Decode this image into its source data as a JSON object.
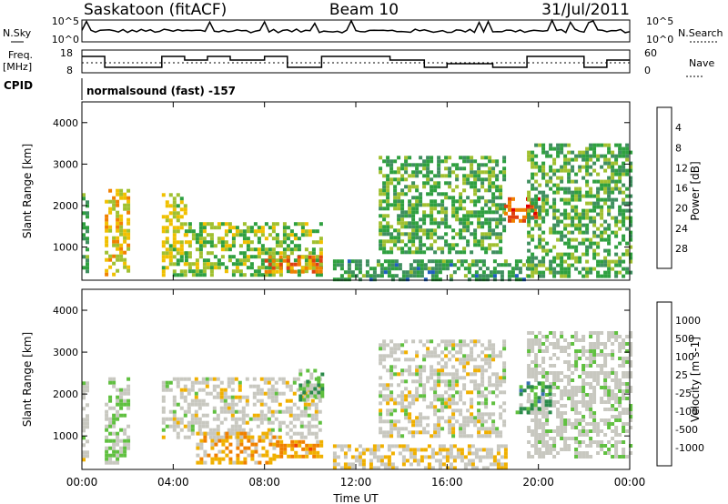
{
  "header": {
    "station": "Saskatoon (fitACF)",
    "beam": "Beam 10",
    "date": "31/Jul/2011"
  },
  "panels": {
    "nsky_label": "N.Sky",
    "nsearch_label": "N.Search",
    "freq_label_1": "Freq.",
    "freq_label_2": "[MHz]",
    "nave_label": "Nave",
    "cpid_label": "CPID",
    "cpid_value": "normalsound (fast) -157",
    "nsky_ticks": [
      "10^5",
      "10^0"
    ],
    "nsearch_ticks": [
      "10^5",
      "10^0"
    ],
    "freq_ticks": [
      "18",
      "8"
    ],
    "nave_ticks": [
      "60",
      "0"
    ]
  },
  "colors": {
    "power": [
      "#0000ff",
      "#1f5fbf",
      "#3f8f5f",
      "#2fa040",
      "#a0c030",
      "#f0c000",
      "#f08000",
      "#e04010",
      "#e00000"
    ],
    "velocity": [
      "#e00000",
      "#f04000",
      "#f08000",
      "#f0b000",
      "#c8c8c0",
      "#c8c8c0",
      "#60c040",
      "#2a8a4a",
      "#3a70b0",
      "#2030c0"
    ]
  },
  "chart_data": [
    {
      "type": "heatmap",
      "title": "",
      "xlabel": "Time UT",
      "ylabel": "Slant Range [km]",
      "x_ticks": [
        "00:00",
        "04:00",
        "08:00",
        "12:00",
        "16:00",
        "20:00",
        "00:00"
      ],
      "y_ticks": [
        "1000",
        "2000",
        "3000",
        "4000"
      ],
      "ylim": [
        200,
        4500
      ],
      "colorbar": {
        "label": "Power [dB]",
        "ticks": [
          "4",
          "8",
          "12",
          "16",
          "20",
          "24",
          "28"
        ],
        "range": [
          0,
          30
        ]
      },
      "regions": [
        {
          "t0": 0.0,
          "t1": 0.3,
          "r0": 400,
          "r1": 2300,
          "v": 10
        },
        {
          "t0": 1.0,
          "t1": 2.0,
          "r0": 300,
          "r1": 2400,
          "v": 18
        },
        {
          "t0": 3.5,
          "t1": 4.5,
          "r0": 300,
          "r1": 2300,
          "v": 16
        },
        {
          "t0": 4.5,
          "t1": 10.5,
          "r0": 300,
          "r1": 1600,
          "v": 14
        },
        {
          "t0": 8.0,
          "t1": 10.5,
          "r0": 400,
          "r1": 800,
          "v": 22
        },
        {
          "t0": 11.0,
          "t1": 19.5,
          "r0": 250,
          "r1": 700,
          "v": 10
        },
        {
          "t0": 13.0,
          "t1": 18.5,
          "r0": 900,
          "r1": 3200,
          "v": 12
        },
        {
          "t0": 18.5,
          "t1": 20.0,
          "r0": 1600,
          "r1": 2200,
          "v": 24
        },
        {
          "t0": 19.5,
          "t1": 24.0,
          "r0": 300,
          "r1": 3500,
          "v": 12
        }
      ]
    },
    {
      "type": "heatmap",
      "title": "",
      "xlabel": "Time UT",
      "ylabel": "Slant Range [km]",
      "x_ticks": [
        "00:00",
        "04:00",
        "08:00",
        "12:00",
        "16:00",
        "20:00",
        "00:00"
      ],
      "y_ticks": [
        "1000",
        "2000",
        "3000",
        "4000"
      ],
      "ylim": [
        200,
        4500
      ],
      "colorbar": {
        "label": "Velocity [m s-1]",
        "ticks": [
          "1000",
          "500",
          "100",
          "25",
          "-25",
          "-100",
          "-500",
          "-1000"
        ],
        "range": [
          -1000,
          1000
        ]
      },
      "regions": [
        {
          "t0": 0.0,
          "t1": 0.3,
          "r0": 300,
          "r1": 2300,
          "v": 0
        },
        {
          "t0": 1.0,
          "t1": 2.0,
          "r0": 400,
          "r1": 2400,
          "v": 150
        },
        {
          "t0": 3.5,
          "t1": 10.5,
          "r0": 1000,
          "r1": 2400,
          "v": 0
        },
        {
          "t0": 5.0,
          "t1": 8.5,
          "r0": 400,
          "r1": 1100,
          "v": -300
        },
        {
          "t0": 8.5,
          "t1": 10.5,
          "r0": 500,
          "r1": 900,
          "v": -400
        },
        {
          "t0": 9.5,
          "t1": 10.5,
          "r0": 1900,
          "r1": 2600,
          "v": 300
        },
        {
          "t0": 11.0,
          "t1": 18.5,
          "r0": 250,
          "r1": 800,
          "v": -150
        },
        {
          "t0": 13.0,
          "t1": 18.5,
          "r0": 1000,
          "r1": 3300,
          "v": 0
        },
        {
          "t0": 19.5,
          "t1": 24.0,
          "r0": 500,
          "r1": 3500,
          "v": 50
        },
        {
          "t0": 19.0,
          "t1": 20.5,
          "r0": 1600,
          "r1": 2300,
          "v": 400
        }
      ]
    }
  ]
}
